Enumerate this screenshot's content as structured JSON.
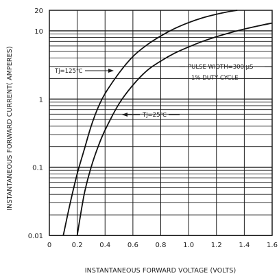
{
  "chart_data": {
    "type": "line",
    "xlabel": "INSTANTANEOUS FORWARD VOLTAGE (VOLTS)",
    "ylabel": "INSTANTANEOUS FORWARD CURRENT( AMPERES)",
    "xlim": [
      0,
      1.6
    ],
    "ylim": [
      0.01,
      20
    ],
    "yscale": "log",
    "grid": true,
    "x_ticks": [
      {
        "value": 0,
        "label": "0"
      },
      {
        "value": 0.2,
        "label": "0.2"
      },
      {
        "value": 0.4,
        "label": "0.4"
      },
      {
        "value": 0.6,
        "label": "0.6"
      },
      {
        "value": 0.8,
        "label": "0.8"
      },
      {
        "value": 1.0,
        "label": "1.0"
      },
      {
        "value": 1.2,
        "label": "1.2"
      },
      {
        "value": 1.4,
        "label": "1.4"
      },
      {
        "value": 1.6,
        "label": "1.6"
      }
    ],
    "y_ticks": [
      {
        "value": 20,
        "label": "20"
      },
      {
        "value": 10,
        "label": "10"
      },
      {
        "value": 1,
        "label": "1"
      },
      {
        "value": 0.1,
        "label": "0.1"
      },
      {
        "value": 0.01,
        "label": "0.01"
      }
    ],
    "series": [
      {
        "name": "Tj=125℃",
        "x": [
          0.1,
          0.15,
          0.2,
          0.25,
          0.3,
          0.35,
          0.4,
          0.5,
          0.6,
          0.7,
          0.8,
          0.9,
          1.0,
          1.1,
          1.2,
          1.3,
          1.35
        ],
        "y": [
          0.01,
          0.03,
          0.08,
          0.18,
          0.4,
          0.75,
          1.2,
          2.4,
          4.2,
          6.2,
          8.4,
          10.8,
          13.2,
          15.5,
          17.5,
          19.3,
          20
        ]
      },
      {
        "name": "Tj=25℃",
        "x": [
          0.2,
          0.25,
          0.3,
          0.35,
          0.4,
          0.5,
          0.6,
          0.7,
          0.8,
          0.9,
          1.0,
          1.1,
          1.2,
          1.3,
          1.4,
          1.5,
          1.6
        ],
        "y": [
          0.01,
          0.04,
          0.1,
          0.2,
          0.35,
          0.85,
          1.6,
          2.6,
          3.6,
          4.7,
          5.8,
          7.0,
          8.2,
          9.4,
          10.6,
          11.8,
          13.0
        ]
      }
    ],
    "annotations": [
      {
        "text": "PULSE WIDTH=300 μS",
        "x": 1.05,
        "y": 2.3
      },
      {
        "text": "1% DUTY CYCLE",
        "x": 1.05,
        "y": 1.55
      },
      {
        "text": "Tj=125℃",
        "x": 0.05,
        "y": 1.95
      },
      {
        "text": "Tj=25℃",
        "x": 0.66,
        "y": 0.48
      }
    ]
  }
}
